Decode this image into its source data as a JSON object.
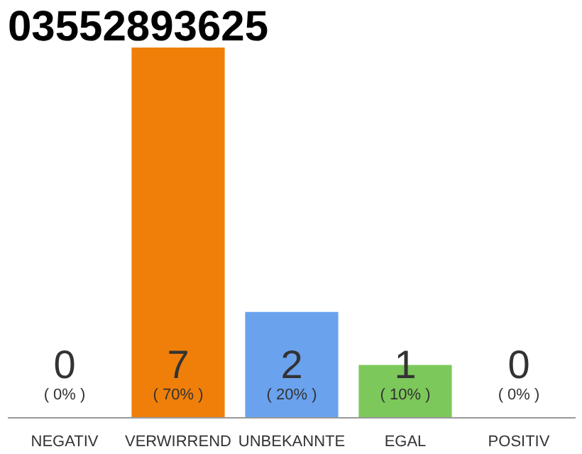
{
  "chart_data": {
    "type": "bar",
    "title": "03552893625",
    "categories": [
      "NEGATIV",
      "VERWIRREND",
      "UNBEKANNTE",
      "EGAL",
      "POSITIV"
    ],
    "values": [
      0,
      70,
      20,
      10,
      0
    ],
    "colors": [
      "#f07f09",
      "#f07f09",
      "#6aa2ee",
      "#7cc85a",
      "#f07f09"
    ],
    "value_labels": [
      "( 0% )",
      "( 70% )",
      "( 20% )",
      "( 10% )",
      "( 0% )"
    ],
    "annotations": [
      "0",
      "7",
      "2",
      "1",
      "0"
    ],
    "tick_labels": "x"
  }
}
